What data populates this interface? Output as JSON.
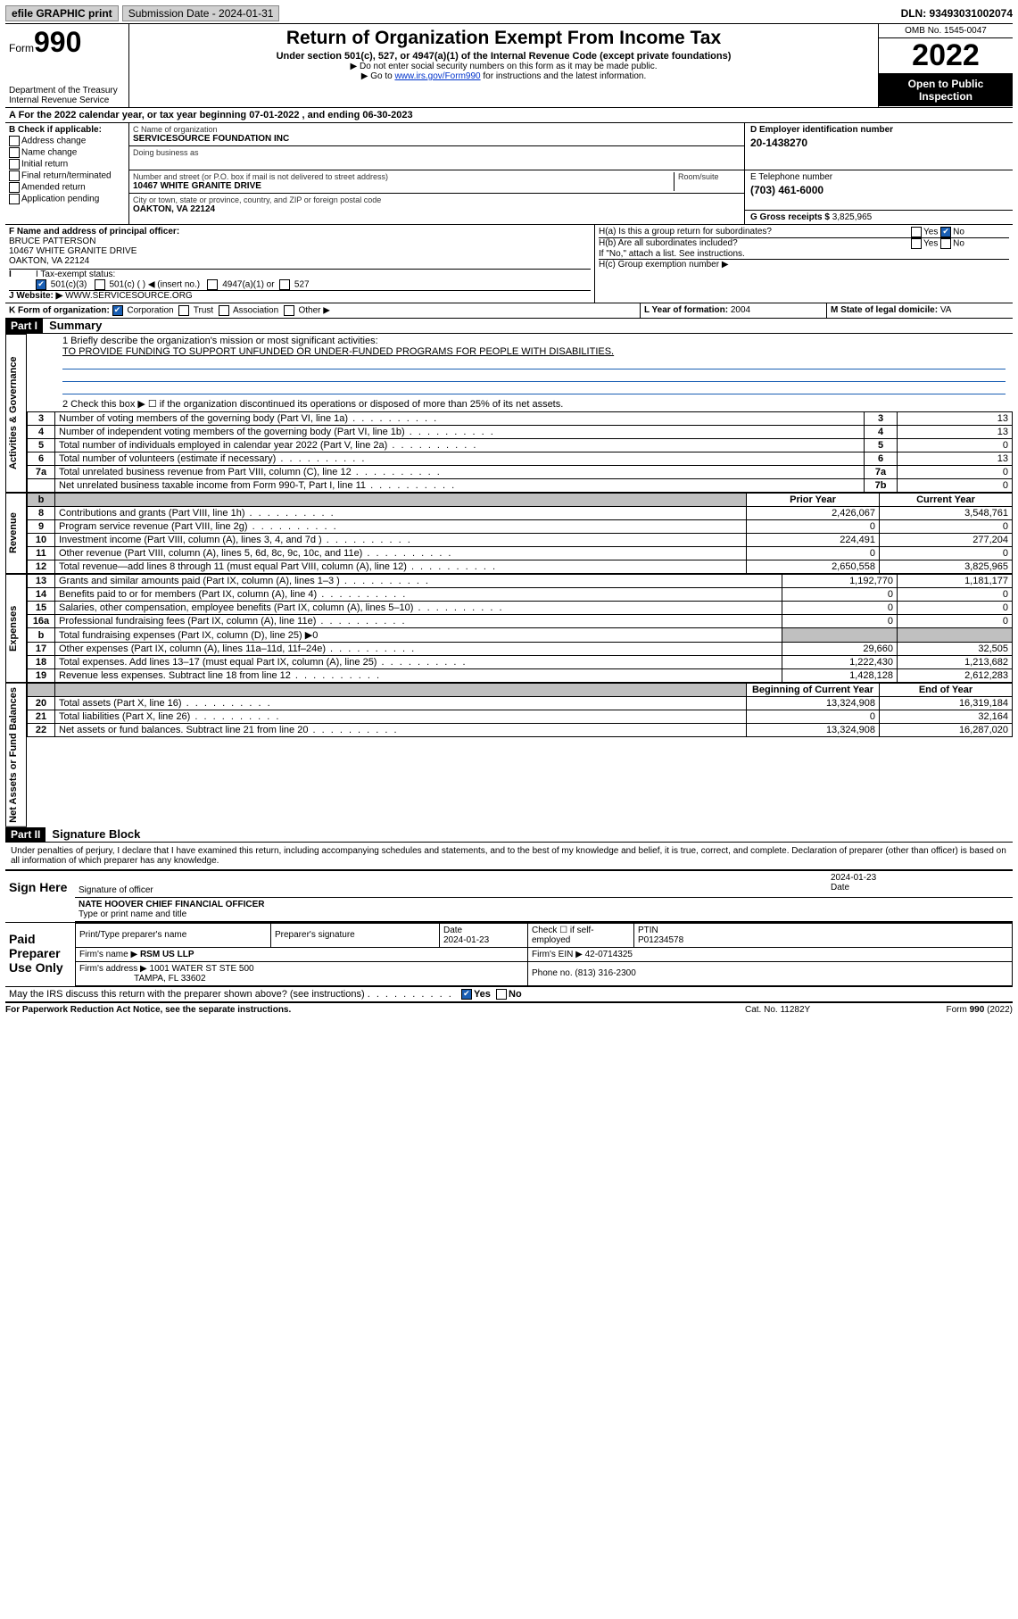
{
  "colors": {
    "checkbox_on": "#1a5fb4",
    "link": "#0033cc",
    "blue_line": "#1a5fb4"
  },
  "topbar": {
    "efile": "efile GRAPHIC print",
    "submission_label": "Submission Date - 2024-01-31",
    "dln": "DLN: 93493031002074"
  },
  "header": {
    "form_word": "Form",
    "form_num": "990",
    "dept": "Department of the Treasury\nInternal Revenue Service",
    "title": "Return of Organization Exempt From Income Tax",
    "subtitle": "Under section 501(c), 527, or 4947(a)(1) of the Internal Revenue Code (except private foundations)",
    "note1": "▶ Do not enter social security numbers on this form as it may be made public.",
    "note2_pre": "▶ Go to ",
    "note2_link": "www.irs.gov/Form990",
    "note2_post": " for instructions and the latest information.",
    "omb": "OMB No. 1545-0047",
    "year": "2022",
    "open": "Open to Public Inspection"
  },
  "row_a": "A For the 2022 calendar year, or tax year beginning 07-01-2022  , and ending 06-30-2023",
  "section_b": {
    "label": "B Check if applicable:",
    "items": [
      {
        "label": "Address change",
        "checked": false
      },
      {
        "label": "Name change",
        "checked": false
      },
      {
        "label": "Initial return",
        "checked": false
      },
      {
        "label": "Final return/terminated",
        "checked": false
      },
      {
        "label": "Amended return",
        "checked": false
      },
      {
        "label": "Application pending",
        "checked": false
      }
    ]
  },
  "section_c": {
    "name_label": "C Name of organization",
    "name": "SERVICESOURCE FOUNDATION INC",
    "dba_label": "Doing business as",
    "dba": "",
    "addr_label": "Number and street (or P.O. box if mail is not delivered to street address)",
    "room_label": "Room/suite",
    "addr": "10467 WHITE GRANITE DRIVE",
    "city_label": "City or town, state or province, country, and ZIP or foreign postal code",
    "city": "OAKTON, VA  22124"
  },
  "section_d": {
    "label": "D Employer identification number",
    "value": "20-1438270"
  },
  "section_e": {
    "label": "E Telephone number",
    "value": "(703) 461-6000"
  },
  "section_g": {
    "label": "G Gross receipts $",
    "value": "3,825,965"
  },
  "section_f": {
    "label": "F Name and address of principal officer:",
    "name": "BRUCE PATTERSON",
    "addr1": "10467 WHITE GRANITE DRIVE",
    "addr2": "OAKTON, VA  22124"
  },
  "section_h": {
    "ha": "H(a)  Is this a group return for subordinates?",
    "ha_yes": false,
    "ha_no": true,
    "hb": "H(b)  Are all subordinates included?",
    "hb_note": "If \"No,\" attach a list. See instructions.",
    "hc": "H(c)  Group exemption number ▶"
  },
  "row_i": {
    "label": "I   Tax-exempt status:",
    "opts": [
      {
        "label": "501(c)(3)",
        "checked": true
      },
      {
        "label": "501(c) (  ) ◀ (insert no.)",
        "checked": false
      },
      {
        "label": "4947(a)(1) or",
        "checked": false
      },
      {
        "label": "527",
        "checked": false
      }
    ]
  },
  "row_j": {
    "label": "J   Website: ▶",
    "value": "WWW.SERVICESOURCE.ORG"
  },
  "row_k": {
    "label": "K Form of organization:",
    "opts": [
      {
        "label": "Corporation",
        "checked": true
      },
      {
        "label": "Trust",
        "checked": false
      },
      {
        "label": "Association",
        "checked": false
      },
      {
        "label": "Other ▶",
        "checked": false
      }
    ]
  },
  "row_l": {
    "label": "L Year of formation:",
    "value": "2004"
  },
  "row_m": {
    "label": "M State of legal domicile:",
    "value": "VA"
  },
  "part1": {
    "hdr": "Part I",
    "title": "Summary",
    "q1": "1  Briefly describe the organization's mission or most significant activities:",
    "mission": "TO PROVIDE FUNDING TO SUPPORT UNFUNDED OR UNDER-FUNDED PROGRAMS FOR PEOPLE WITH DISABILITIES.",
    "q2": "2   Check this box ▶ ☐  if the organization discontinued its operations or disposed of more than 25% of its net assets.",
    "side_gov": "Activities & Governance",
    "side_rev": "Revenue",
    "side_exp": "Expenses",
    "side_net": "Net Assets or Fund Balances",
    "gov_rows": [
      {
        "n": "3",
        "desc": "Number of voting members of the governing body (Part VI, line 1a)",
        "box": "3",
        "val": "13"
      },
      {
        "n": "4",
        "desc": "Number of independent voting members of the governing body (Part VI, line 1b)",
        "box": "4",
        "val": "13"
      },
      {
        "n": "5",
        "desc": "Total number of individuals employed in calendar year 2022 (Part V, line 2a)",
        "box": "5",
        "val": "0"
      },
      {
        "n": "6",
        "desc": "Total number of volunteers (estimate if necessary)",
        "box": "6",
        "val": "13"
      },
      {
        "n": "7a",
        "desc": "Total unrelated business revenue from Part VIII, column (C), line 12",
        "box": "7a",
        "val": "0"
      },
      {
        "n": "",
        "desc": "Net unrelated business taxable income from Form 990-T, Part I, line 11",
        "box": "7b",
        "val": "0"
      }
    ],
    "col_prior": "Prior Year",
    "col_curr": "Current Year",
    "rev_rows": [
      {
        "n": "8",
        "desc": "Contributions and grants (Part VIII, line 1h)",
        "prior": "2,426,067",
        "curr": "3,548,761"
      },
      {
        "n": "9",
        "desc": "Program service revenue (Part VIII, line 2g)",
        "prior": "0",
        "curr": "0"
      },
      {
        "n": "10",
        "desc": "Investment income (Part VIII, column (A), lines 3, 4, and 7d )",
        "prior": "224,491",
        "curr": "277,204"
      },
      {
        "n": "11",
        "desc": "Other revenue (Part VIII, column (A), lines 5, 6d, 8c, 9c, 10c, and 11e)",
        "prior": "0",
        "curr": "0"
      },
      {
        "n": "12",
        "desc": "Total revenue—add lines 8 through 11 (must equal Part VIII, column (A), line 12)",
        "prior": "2,650,558",
        "curr": "3,825,965"
      }
    ],
    "exp_rows": [
      {
        "n": "13",
        "desc": "Grants and similar amounts paid (Part IX, column (A), lines 1–3 )",
        "prior": "1,192,770",
        "curr": "1,181,177"
      },
      {
        "n": "14",
        "desc": "Benefits paid to or for members (Part IX, column (A), line 4)",
        "prior": "0",
        "curr": "0"
      },
      {
        "n": "15",
        "desc": "Salaries, other compensation, employee benefits (Part IX, column (A), lines 5–10)",
        "prior": "0",
        "curr": "0"
      },
      {
        "n": "16a",
        "desc": "Professional fundraising fees (Part IX, column (A), line 11e)",
        "prior": "0",
        "curr": "0"
      },
      {
        "n": "b",
        "desc": "Total fundraising expenses (Part IX, column (D), line 25) ▶0",
        "prior": "",
        "curr": "",
        "gray": true
      },
      {
        "n": "17",
        "desc": "Other expenses (Part IX, column (A), lines 11a–11d, 11f–24e)",
        "prior": "29,660",
        "curr": "32,505"
      },
      {
        "n": "18",
        "desc": "Total expenses. Add lines 13–17 (must equal Part IX, column (A), line 25)",
        "prior": "1,222,430",
        "curr": "1,213,682"
      },
      {
        "n": "19",
        "desc": "Revenue less expenses. Subtract line 18 from line 12",
        "prior": "1,428,128",
        "curr": "2,612,283"
      }
    ],
    "col_begin": "Beginning of Current Year",
    "col_end": "End of Year",
    "net_rows": [
      {
        "n": "20",
        "desc": "Total assets (Part X, line 16)",
        "prior": "13,324,908",
        "curr": "16,319,184"
      },
      {
        "n": "21",
        "desc": "Total liabilities (Part X, line 26)",
        "prior": "0",
        "curr": "32,164"
      },
      {
        "n": "22",
        "desc": "Net assets or fund balances. Subtract line 21 from line 20",
        "prior": "13,324,908",
        "curr": "16,287,020"
      }
    ]
  },
  "part2": {
    "hdr": "Part II",
    "title": "Signature Block",
    "decl": "Under penalties of perjury, I declare that I have examined this return, including accompanying schedules and statements, and to the best of my knowledge and belief, it is true, correct, and complete. Declaration of preparer (other than officer) is based on all information of which preparer has any knowledge.",
    "sign_here": "Sign Here",
    "sig_officer": "Signature of officer",
    "sig_date_label": "Date",
    "sig_date": "2024-01-23",
    "officer_name": "NATE HOOVER  CHIEF FINANCIAL OFFICER",
    "officer_sub": "Type or print name and title",
    "paid_label": "Paid Preparer Use Only",
    "prep_name_label": "Print/Type preparer's name",
    "prep_sig_label": "Preparer's signature",
    "prep_date_label": "Date",
    "prep_date": "2024-01-23",
    "self_emp": "Check ☐ if self-employed",
    "ptin_label": "PTIN",
    "ptin": "P01234578",
    "firm_name_label": "Firm's name    ▶",
    "firm_name": "RSM US LLP",
    "firm_ein_label": "Firm's EIN ▶",
    "firm_ein": "42-0714325",
    "firm_addr_label": "Firm's address ▶",
    "firm_addr1": "1001 WATER ST STE 500",
    "firm_addr2": "TAMPA, FL  33602",
    "firm_phone_label": "Phone no.",
    "firm_phone": "(813) 316-2300",
    "discuss": "May the IRS discuss this return with the preparer shown above? (see instructions)",
    "discuss_yes": true
  },
  "footer": {
    "left": "For Paperwork Reduction Act Notice, see the separate instructions.",
    "mid": "Cat. No. 11282Y",
    "right": "Form 990 (2022)"
  }
}
